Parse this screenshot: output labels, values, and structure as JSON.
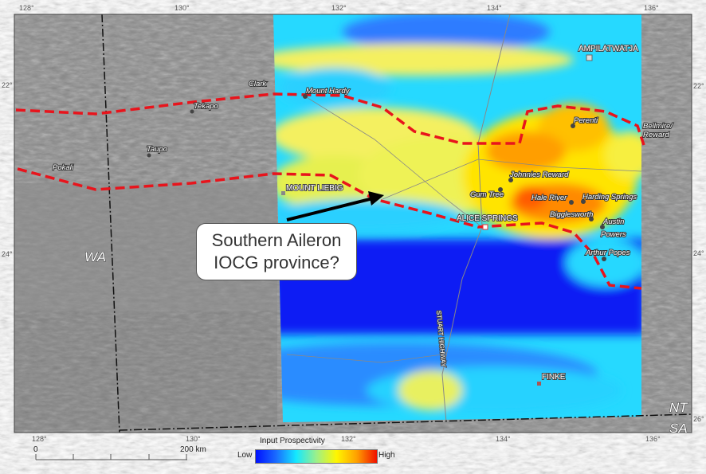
{
  "map": {
    "top_ticks": [
      "128°",
      "130°",
      "132°",
      "134°",
      "136°"
    ],
    "bottom_ticks": [
      "128°",
      "130°",
      "132°",
      "134°",
      "136°"
    ],
    "left_ticks": [
      "22°",
      "24°"
    ],
    "right_ticks": [
      "22°",
      "24°",
      "26°"
    ],
    "states": {
      "wa": "WA",
      "nt": "NT",
      "sa": "SA"
    },
    "towns": {
      "ampilatwatja": "AMPILATWATJA",
      "mount_liebig": "MOUNT LIEBIG",
      "alice_springs": "ALICE SPRINGS",
      "finke": "FINKE"
    },
    "road": "STUART HIGHWAY",
    "prospects": [
      "Clark",
      "Tekapo",
      "Taupo",
      "Pokali",
      "Mount Hardy",
      "Perenti",
      "Bellmire/",
      "Reward",
      "Johnnies Reward",
      "Gum Tree",
      "Hale River",
      "Harding Springs",
      "Bigglesworth",
      "Austin",
      "Powers",
      "Arthur Popes"
    ],
    "callout": {
      "line1": "Southern Aileron",
      "line2": "IOCG province?"
    },
    "boundary_color": "#e8141c"
  },
  "legend": {
    "title": "Input Prospectivity",
    "low": "Low",
    "high": "High",
    "colors": [
      "#0010ff",
      "#14e8ff",
      "#fff600",
      "#f01000"
    ]
  },
  "scale_bar": {
    "start": "0",
    "end": "200 km"
  }
}
